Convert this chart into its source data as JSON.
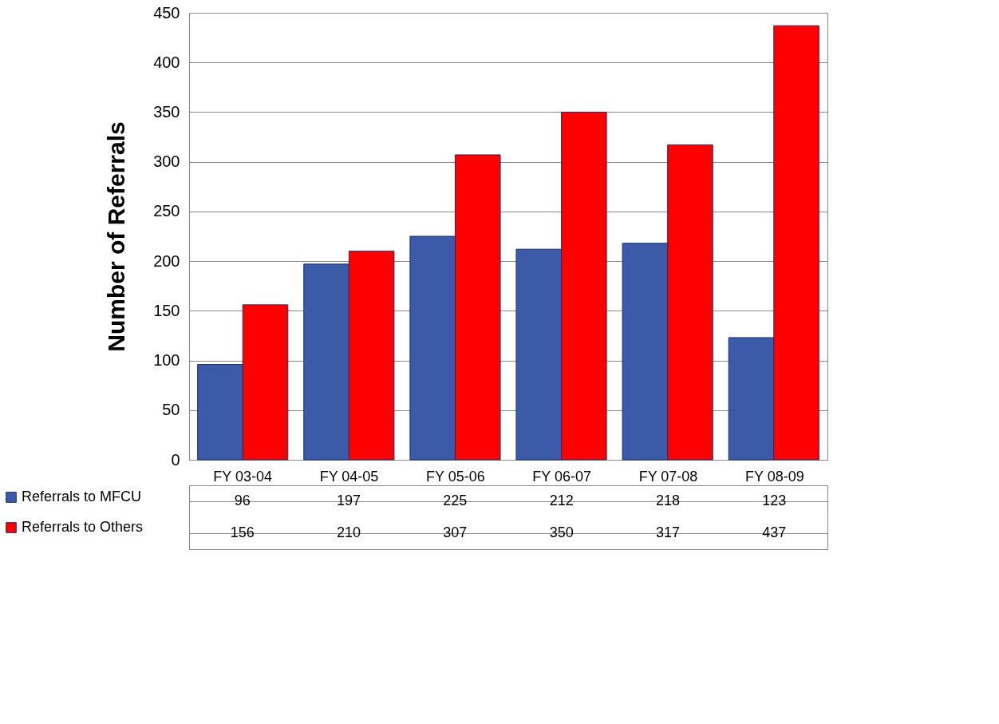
{
  "chart_data": {
    "type": "bar",
    "ylabel": "Number of Referrals",
    "categories": [
      "FY 03-04",
      "FY 04-05",
      "FY 05-06",
      "FY 06-07",
      "FY 07-08",
      "FY 08-09"
    ],
    "series": [
      {
        "name": "Referrals  to MFCU",
        "color": "#3b5ba9",
        "values": [
          96,
          197,
          225,
          212,
          218,
          123
        ]
      },
      {
        "name": "Referrals to Others",
        "color": "#ff0000",
        "values": [
          156,
          210,
          307,
          350,
          317,
          437
        ]
      }
    ],
    "ylim": [
      0,
      450
    ],
    "yticks": [
      0,
      50,
      100,
      150,
      200,
      250,
      300,
      350,
      400,
      450
    ],
    "grid": "y",
    "legend": "bottom",
    "data_labels": true
  }
}
